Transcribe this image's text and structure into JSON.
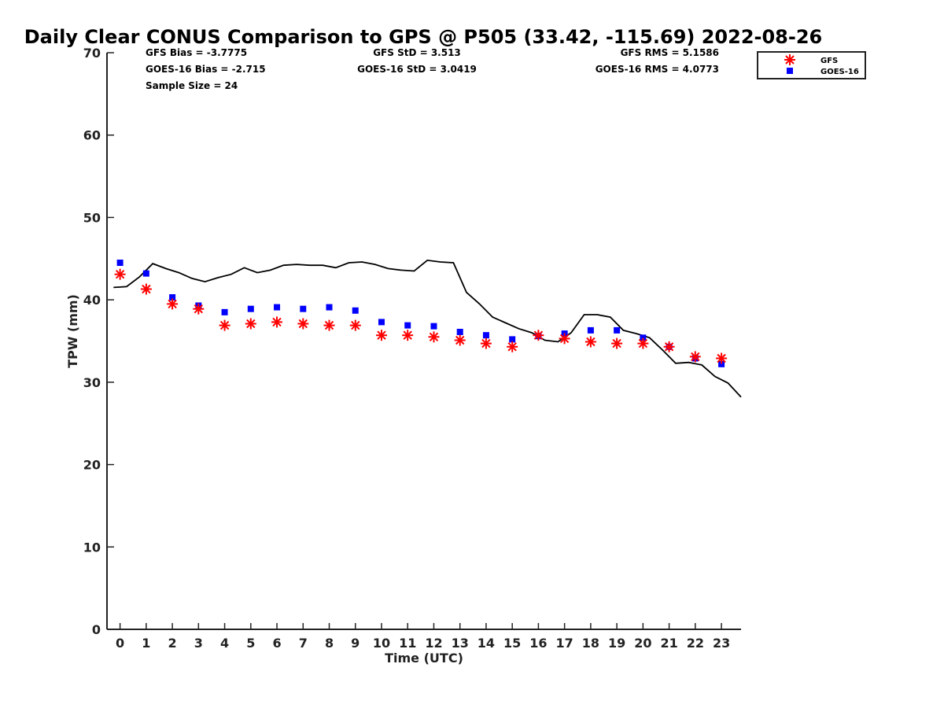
{
  "chart_data": {
    "type": "scatter",
    "title": "Daily Clear CONUS Comparison to GPS @ P505 (33.42, -115.69) 2022-08-26",
    "xlabel": "Time (UTC)",
    "ylabel": "TPW (mm)",
    "xlim": [
      -0.5,
      23.75
    ],
    "ylim": [
      0,
      70
    ],
    "x_ticks": [
      "0",
      "1",
      "2",
      "3",
      "4",
      "5",
      "6",
      "7",
      "8",
      "9",
      "10",
      "11",
      "12",
      "13",
      "14",
      "15",
      "16",
      "17",
      "18",
      "19",
      "20",
      "21",
      "22",
      "23"
    ],
    "y_ticks": [
      "0",
      "10",
      "20",
      "30",
      "40",
      "50",
      "60",
      "70"
    ],
    "grid": false,
    "legend_position": "top-right",
    "stats": {
      "gfs_bias": "GFS Bias = -3.7775",
      "goes_bias": "GOES-16 Bias = -2.715",
      "sample_size": "Sample Size = 24",
      "gfs_std": "GFS StD = 3.513",
      "goes_std": "GOES-16 StD = 3.0419",
      "gfs_rms": "GFS RMS = 5.1586",
      "goes_rms": "GOES-16 RMS = 4.0773"
    },
    "series": [
      {
        "name": "GFS",
        "marker": "asterisk",
        "color": "#ff0000",
        "x": [
          0,
          1,
          2,
          3,
          4,
          5,
          6,
          7,
          8,
          9,
          10,
          11,
          12,
          13,
          14,
          15,
          16,
          17,
          18,
          19,
          20,
          21,
          22,
          23
        ],
        "values": [
          43.1,
          41.3,
          39.5,
          38.9,
          36.9,
          37.1,
          37.3,
          37.1,
          36.9,
          36.9,
          35.7,
          35.7,
          35.5,
          35.1,
          34.7,
          34.3,
          35.7,
          35.3,
          34.9,
          34.7,
          34.7,
          34.3,
          33.1,
          32.9
        ]
      },
      {
        "name": "GOES-16",
        "marker": "square",
        "color": "#0000ff",
        "x": [
          0,
          1,
          2,
          3,
          4,
          5,
          6,
          7,
          8,
          9,
          10,
          11,
          12,
          13,
          14,
          15,
          16,
          17,
          18,
          19,
          20,
          21,
          22,
          23
        ],
        "values": [
          44.5,
          43.2,
          40.3,
          39.3,
          38.5,
          38.9,
          39.1,
          38.9,
          39.1,
          38.7,
          37.3,
          36.9,
          36.8,
          36.1,
          35.7,
          35.2,
          35.6,
          35.9,
          36.3,
          36.3,
          35.4,
          34.3,
          32.9,
          32.2
        ]
      },
      {
        "name": "GPS",
        "marker": "line",
        "color": "#000000",
        "x": [
          -0.25,
          0.25,
          0.75,
          1.25,
          1.75,
          2.25,
          2.75,
          3.25,
          3.75,
          4.25,
          4.75,
          5.25,
          5.75,
          6.25,
          6.75,
          7.25,
          7.75,
          8.25,
          8.75,
          9.25,
          9.75,
          10.25,
          10.75,
          11.25,
          11.75,
          12.25,
          12.75,
          13.25,
          13.75,
          14.25,
          14.75,
          15.25,
          15.75,
          16.25,
          16.75,
          17.25,
          17.75,
          18.25,
          18.75,
          19.25,
          19.75,
          20.25,
          20.75,
          21.25,
          21.75,
          22.25,
          22.75,
          23.25,
          23.75
        ],
        "values": [
          41.5,
          41.6,
          42.8,
          44.4,
          43.8,
          43.3,
          42.6,
          42.2,
          42.7,
          43.1,
          43.9,
          43.3,
          43.6,
          44.2,
          44.3,
          44.2,
          44.2,
          43.9,
          44.5,
          44.6,
          44.3,
          43.8,
          43.6,
          43.5,
          44.8,
          44.6,
          44.5,
          40.9,
          39.5,
          37.9,
          37.2,
          36.5,
          36.0,
          35.1,
          34.9,
          36.0,
          38.2,
          38.2,
          37.9,
          36.3,
          35.9,
          35.4,
          33.9,
          32.3,
          32.4,
          32.1,
          30.7,
          29.9,
          28.2
        ]
      }
    ]
  }
}
